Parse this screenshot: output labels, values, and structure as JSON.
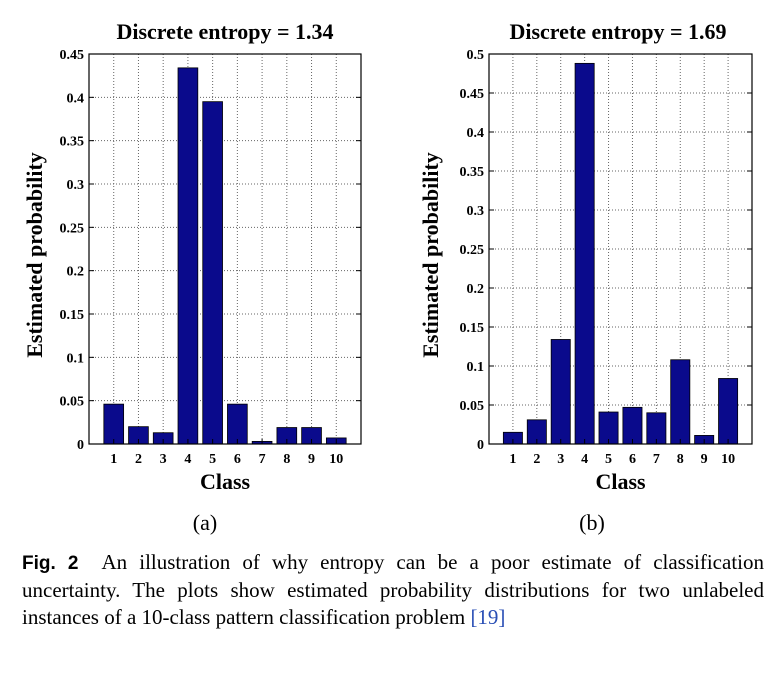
{
  "chart_data": [
    {
      "type": "bar",
      "title": "Discrete entropy = 1.34",
      "xlabel": "Class",
      "ylabel": "Estimated probability",
      "categories": [
        "1",
        "2",
        "3",
        "4",
        "5",
        "6",
        "7",
        "8",
        "9",
        "10"
      ],
      "values": [
        0.046,
        0.02,
        0.013,
        0.434,
        0.395,
        0.046,
        0.003,
        0.019,
        0.019,
        0.007
      ],
      "ylim": [
        0,
        0.45
      ],
      "yticks": [
        "0",
        "0.05",
        "0.1",
        "0.15",
        "0.2",
        "0.25",
        "0.3",
        "0.35",
        "0.4",
        "0.45"
      ],
      "grid": true,
      "color": "#0a0a8c",
      "panel_label": "(a)"
    },
    {
      "type": "bar",
      "title": "Discrete entropy = 1.69",
      "xlabel": "Class",
      "ylabel": "Estimated probability",
      "categories": [
        "1",
        "2",
        "3",
        "4",
        "5",
        "6",
        "7",
        "8",
        "9",
        "10"
      ],
      "values": [
        0.015,
        0.031,
        0.134,
        0.488,
        0.041,
        0.047,
        0.04,
        0.108,
        0.011,
        0.084
      ],
      "ylim": [
        0,
        0.5
      ],
      "yticks": [
        "0",
        "0.05",
        "0.1",
        "0.15",
        "0.2",
        "0.25",
        "0.3",
        "0.35",
        "0.4",
        "0.45",
        "0.5"
      ],
      "grid": true,
      "color": "#0a0a8c",
      "panel_label": "(b)"
    }
  ],
  "caption": {
    "label": "Fig. 2",
    "text": "An illustration of why entropy can be a poor estimate of classification uncertainty. The plots show estimated probability distributions for two unlabeled instances of a 10-class pattern classification problem ",
    "citation": "[19]"
  }
}
